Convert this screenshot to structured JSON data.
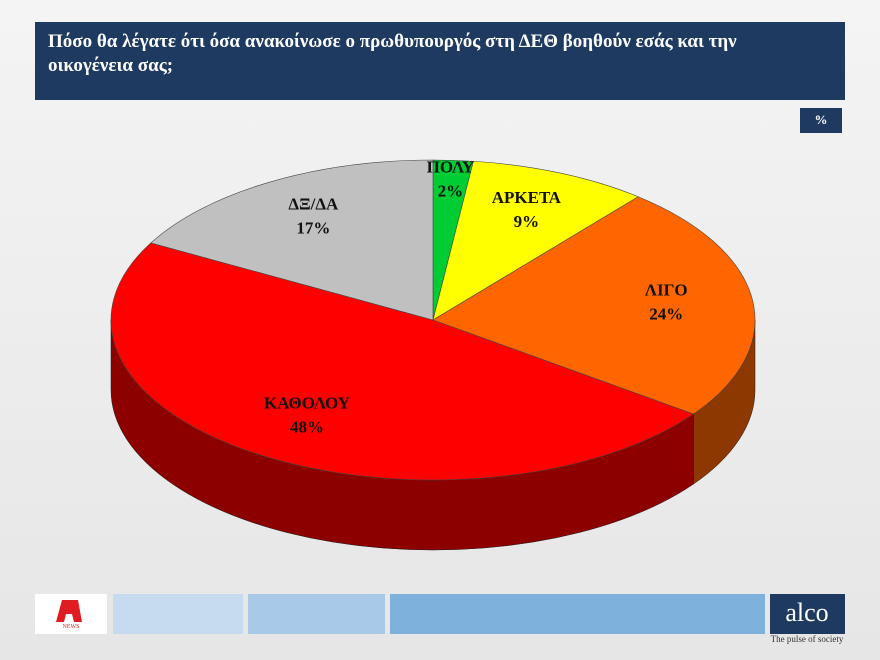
{
  "chart_data": {
    "type": "pie3d",
    "title": "Πόσο θα λέγατε ότι όσα ανακοίνωσε ο πρωθυπουργός στη ΔΕΘ βοηθούν εσάς και την οικογένεια σας;",
    "unit_badge": "%",
    "categories": [
      "ΠΟΛΥ",
      "ΑΡΚΕΤΑ",
      "ΛΙΓΟ",
      "ΚΑΘΟΛΟΥ",
      "ΔΞ/ΔΑ"
    ],
    "values": [
      2,
      9,
      24,
      48,
      17
    ],
    "value_labels": [
      "2%",
      "9%",
      "24%",
      "48%",
      "17%"
    ],
    "colors": [
      "#00cc33",
      "#ffff00",
      "#ff6600",
      "#ff0000",
      "#c0c0c0"
    ]
  },
  "footer": {
    "channel_logo": "NEWS",
    "brand": "alco",
    "tagline": "The pulse of society"
  }
}
